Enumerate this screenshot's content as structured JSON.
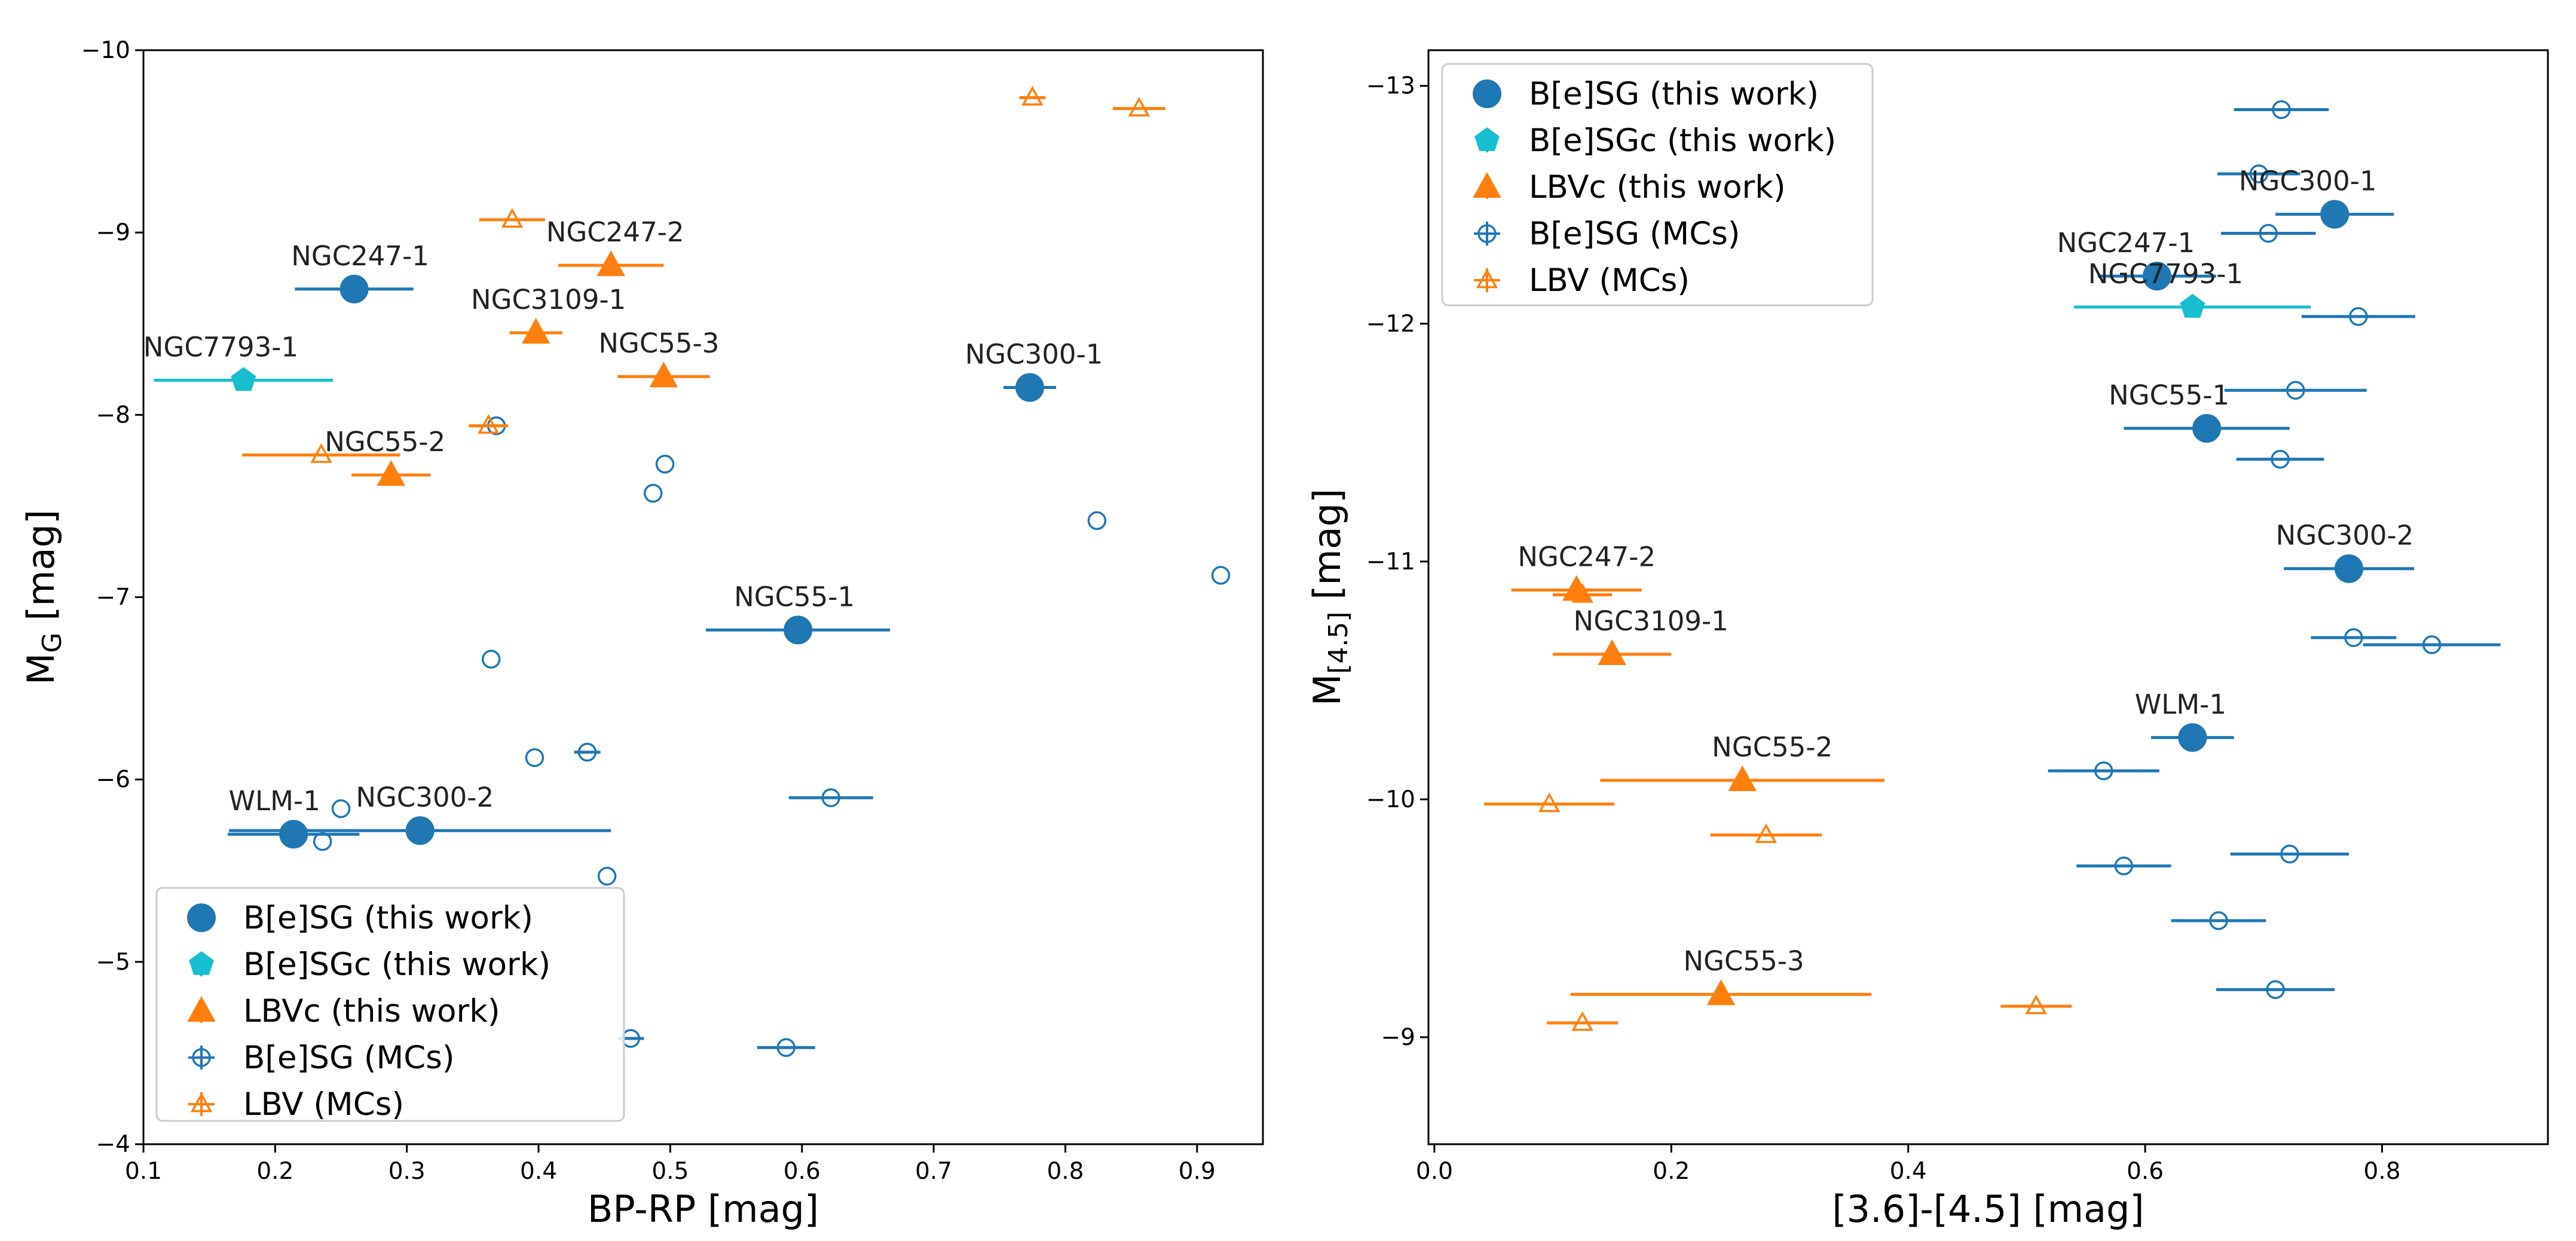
{
  "colors": {
    "blue": "#1f77b4",
    "orange": "#ff7f0e",
    "cyan": "#17becf",
    "lightblue": "#5ba3d6",
    "lightorange": "#ffa84d"
  },
  "chart_data": [
    {
      "type": "scatter",
      "title": "",
      "xlabel": "BP-RP [mag]",
      "ylabel_main": "M",
      "ylabel_sub": "G",
      "ylabel_tail": " [mag]",
      "xlim": [
        0.1,
        0.95
      ],
      "ylim": [
        -4,
        -10
      ],
      "xticks": [
        0.1,
        0.2,
        0.3,
        0.4,
        0.5,
        0.6,
        0.7,
        0.8,
        0.9
      ],
      "xtick_labels": [
        "0.1",
        "0.2",
        "0.3",
        "0.4",
        "0.5",
        "0.6",
        "0.7",
        "0.8",
        "0.9"
      ],
      "yticks": [
        -10,
        -9,
        -8,
        -7,
        -6,
        -5,
        -4
      ],
      "ytick_labels": [
        "−10",
        "−9",
        "−8",
        "−7",
        "−6",
        "−5",
        "−4"
      ],
      "legend_position": "lower-left",
      "series": [
        {
          "name": "B[e]SG (this work)",
          "marker": "circle",
          "color": "blue",
          "points": [
            {
              "x": 0.26,
              "y": -8.69,
              "xerr": 0.045,
              "label": "NGC247-1"
            },
            {
              "x": 0.773,
              "y": -8.15,
              "xerr": 0.02,
              "label": "NGC300-1"
            },
            {
              "x": 0.597,
              "y": -6.82,
              "xerr": 0.07,
              "label": "NGC55-1"
            },
            {
              "x": 0.214,
              "y": -5.7,
              "xerr": 0.05,
              "label": "WLM-1"
            },
            {
              "x": 0.31,
              "y": -5.72,
              "xerr": 0.145,
              "label": "NGC300-2"
            }
          ]
        },
        {
          "name": "B[e]SGc (this work)",
          "marker": "pentagon",
          "color": "cyan",
          "points": [
            {
              "x": 0.176,
              "y": -8.19,
              "xerr": 0.068,
              "label": "NGC7793-1"
            }
          ]
        },
        {
          "name": "LBVc (this work)",
          "marker": "triangle",
          "color": "orange",
          "points": [
            {
              "x": 0.455,
              "y": -8.82,
              "xerr": 0.04,
              "label": "NGC247-2"
            },
            {
              "x": 0.398,
              "y": -8.45,
              "xerr": 0.02,
              "label": "NGC3109-1"
            },
            {
              "x": 0.495,
              "y": -8.21,
              "xerr": 0.035,
              "label": "NGC55-3"
            },
            {
              "x": 0.288,
              "y": -7.67,
              "xerr": 0.03,
              "label": "NGC55-2"
            }
          ]
        },
        {
          "name": "B[e]SG (MCs)",
          "marker": "open-circle",
          "color": "blue",
          "points": [
            {
              "x": 0.368,
              "y": -7.94,
              "xerr": 0
            },
            {
              "x": 0.496,
              "y": -7.73,
              "xerr": 0
            },
            {
              "x": 0.487,
              "y": -7.57,
              "xerr": 0
            },
            {
              "x": 0.824,
              "y": -7.42,
              "xerr": 0
            },
            {
              "x": 0.918,
              "y": -7.12,
              "xerr": 0
            },
            {
              "x": 0.364,
              "y": -6.66,
              "xerr": 0
            },
            {
              "x": 0.397,
              "y": -6.12,
              "xerr": 0
            },
            {
              "x": 0.437,
              "y": -6.15,
              "xerr": 0.01
            },
            {
              "x": 0.622,
              "y": -5.9,
              "xerr": 0.032
            },
            {
              "x": 0.25,
              "y": -5.84,
              "xerr": 0
            },
            {
              "x": 0.236,
              "y": -5.66,
              "xerr": 0
            },
            {
              "x": 0.452,
              "y": -5.47,
              "xerr": 0
            },
            {
              "x": 0.47,
              "y": -4.58,
              "xerr": 0.01
            },
            {
              "x": 0.588,
              "y": -4.53,
              "xerr": 0.022
            }
          ]
        },
        {
          "name": "LBV (MCs)",
          "marker": "open-triangle",
          "color": "orange",
          "points": [
            {
              "x": 0.775,
              "y": -9.74,
              "xerr": 0.01
            },
            {
              "x": 0.856,
              "y": -9.68,
              "xerr": 0.02
            },
            {
              "x": 0.38,
              "y": -9.07,
              "xerr": 0.025
            },
            {
              "x": 0.362,
              "y": -7.94,
              "xerr": 0.015
            },
            {
              "x": 0.235,
              "y": -7.78,
              "xerr": 0.06
            }
          ]
        }
      ]
    },
    {
      "type": "scatter",
      "title": "",
      "xlabel": "[3.6]-[4.5] [mag]",
      "ylabel_main": "M",
      "ylabel_sub": "[4.5]",
      "ylabel_tail": " [mag]",
      "xlim": [
        -0.005,
        0.94
      ],
      "ylim": [
        -8.55,
        -13.15
      ],
      "xticks": [
        0.0,
        0.2,
        0.4,
        0.6,
        0.8
      ],
      "xtick_labels": [
        "0.0",
        "0.2",
        "0.4",
        "0.6",
        "0.8"
      ],
      "yticks": [
        -13,
        -12,
        -11,
        -10,
        -9
      ],
      "ytick_labels": [
        "−13",
        "−12",
        "−11",
        "−10",
        "−9"
      ],
      "legend_position": "upper-left",
      "series": [
        {
          "name": "B[e]SG (this work)",
          "marker": "circle",
          "color": "blue",
          "points": [
            {
              "x": 0.76,
              "y": -12.46,
              "xerr": 0.05,
              "label": "NGC300-1"
            },
            {
              "x": 0.61,
              "y": -12.2,
              "xerr": 0.05,
              "label": "NGC247-1"
            },
            {
              "x": 0.652,
              "y": -11.56,
              "xerr": 0.07,
              "label": "NGC55-1"
            },
            {
              "x": 0.772,
              "y": -10.97,
              "xerr": 0.055,
              "label": "NGC300-2"
            },
            {
              "x": 0.64,
              "y": -10.26,
              "xerr": 0.035,
              "label": "WLM-1"
            }
          ]
        },
        {
          "name": "B[e]SGc (this work)",
          "marker": "pentagon",
          "color": "cyan",
          "points": [
            {
              "x": 0.64,
              "y": -12.07,
              "xerr": 0.1,
              "label": "NGC7793-1"
            }
          ]
        },
        {
          "name": "LBVc (this work)",
          "marker": "triangle",
          "color": "orange",
          "points": [
            {
              "x": 0.12,
              "y": -10.88,
              "xerr": 0.055,
              "label": "NGC247-2"
            },
            {
              "x": 0.15,
              "y": -10.61,
              "xerr": 0.05,
              "label": "NGC3109-1"
            },
            {
              "x": 0.26,
              "y": -10.08,
              "xerr": 0.12,
              "label": "NGC55-2"
            },
            {
              "x": 0.242,
              "y": -9.18,
              "xerr": 0.127,
              "label": "NGC55-3"
            }
          ]
        },
        {
          "name": "B[e]SG (MCs)",
          "marker": "open-circle",
          "color": "blue",
          "points": [
            {
              "x": 0.715,
              "y": -12.9,
              "xerr": 0.04
            },
            {
              "x": 0.696,
              "y": -12.63,
              "xerr": 0.035
            },
            {
              "x": 0.704,
              "y": -12.38,
              "xerr": 0.04
            },
            {
              "x": 0.78,
              "y": -12.03,
              "xerr": 0.048
            },
            {
              "x": 0.727,
              "y": -11.72,
              "xerr": 0.06
            },
            {
              "x": 0.714,
              "y": -11.43,
              "xerr": 0.037
            },
            {
              "x": 0.776,
              "y": -10.68,
              "xerr": 0.036
            },
            {
              "x": 0.842,
              "y": -10.65,
              "xerr": 0.058
            },
            {
              "x": 0.565,
              "y": -10.12,
              "xerr": 0.047
            },
            {
              "x": 0.722,
              "y": -9.77,
              "xerr": 0.05
            },
            {
              "x": 0.582,
              "y": -9.72,
              "xerr": 0.04
            },
            {
              "x": 0.662,
              "y": -9.49,
              "xerr": 0.04
            },
            {
              "x": 0.71,
              "y": -9.2,
              "xerr": 0.05
            }
          ]
        },
        {
          "name": "LBV (MCs)",
          "marker": "open-triangle",
          "color": "orange",
          "points": [
            {
              "x": 0.125,
              "y": -10.86,
              "xerr": 0.025
            },
            {
              "x": 0.097,
              "y": -9.98,
              "xerr": 0.055
            },
            {
              "x": 0.28,
              "y": -9.85,
              "xerr": 0.047
            },
            {
              "x": 0.508,
              "y": -9.13,
              "xerr": 0.03
            },
            {
              "x": 0.125,
              "y": -9.06,
              "xerr": 0.03
            }
          ]
        }
      ]
    }
  ]
}
